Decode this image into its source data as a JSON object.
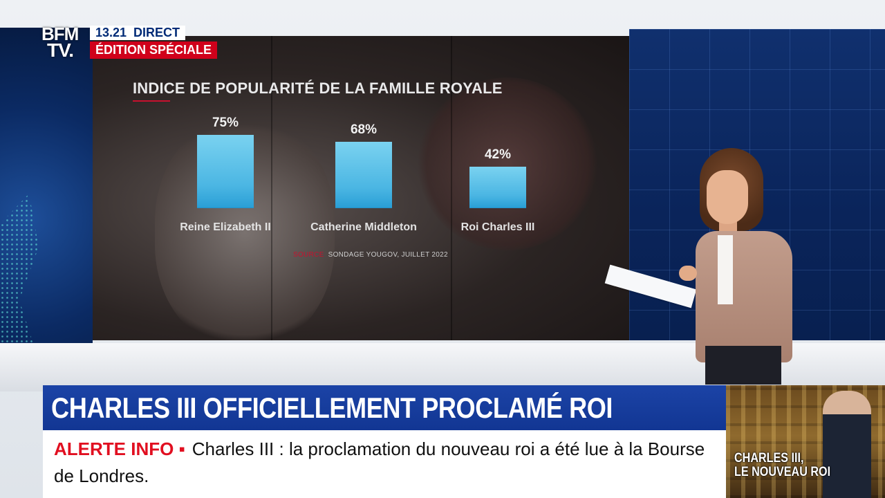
{
  "channel": {
    "logo_line1": "BFM",
    "logo_line2": "TV.",
    "time": "13.21",
    "live_label": "DIRECT",
    "edition_label": "ÉDITION SPÉCIALE"
  },
  "graphic": {
    "source_lead": "SOURCE",
    "source_text": "SONDAGE YOUGOV, JUILLET 2022"
  },
  "chart_data": {
    "type": "bar",
    "title": "INDICE DE POPULARITÉ DE LA FAMILLE ROYALE",
    "categories": [
      "Reine Elizabeth II",
      "Catherine Middleton",
      "Roi Charles III"
    ],
    "values": [
      75,
      68,
      42
    ],
    "value_labels": [
      "75%",
      "68%",
      "42%"
    ],
    "ylim": [
      0,
      100
    ],
    "color": "#4bb6e3",
    "grid": false
  },
  "lower_third": {
    "headline": "CHARLES III OFFICIELLEMENT PROCLAMÉ ROI",
    "alert_label": "ALERTE INFO ▪",
    "ticker_text": "Charles III : la proclamation du nouveau roi a été lue à la Bourse de Londres."
  },
  "thumbnail": {
    "caption_line1": "CHARLES III,",
    "caption_line2": "LE NOUVEAU ROI"
  },
  "colors": {
    "headline_bg": "#123693",
    "alert_red": "#e10f20",
    "edition_red": "#d0011b",
    "bar_blue": "#4bb6e3"
  }
}
